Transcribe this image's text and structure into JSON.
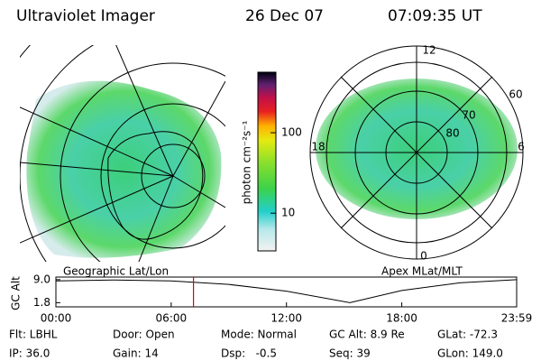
{
  "header": {
    "title": "Ultraviolet Imager",
    "date": "26 Dec 07",
    "time": "07:09:35 UT"
  },
  "left_map": {
    "label": "Geographic Lat/Lon"
  },
  "right_map": {
    "label": "Apex MLat/MLT",
    "labels": [
      "12",
      "60",
      "70",
      "80",
      "18",
      "6",
      "0"
    ]
  },
  "colorbar": {
    "label": "photon cm⁻²s⁻¹",
    "log": true,
    "lim": [
      3.4,
      565
    ],
    "ticks": [
      10,
      100
    ]
  },
  "altitude_plot": {
    "type": "line",
    "ylabel": "GC Alt",
    "yticks": [
      1.8,
      {
        "value": 9,
        "label": "9.0"
      }
    ],
    "ylim": [
      0.5,
      9.8
    ],
    "xlim": [
      0,
      23.98
    ],
    "xticks": [
      {
        "value": 0,
        "label": "00:00"
      },
      {
        "value": 6,
        "label": "06:00"
      },
      {
        "value": 12,
        "label": "12:00"
      },
      {
        "value": 18,
        "label": "18:00"
      },
      {
        "value": 23.98,
        "label": "23:59"
      }
    ],
    "x": [
      0,
      3,
      6,
      9,
      12,
      15.3,
      18,
      21,
      23.98
    ],
    "values": [
      8.6,
      8.9,
      8.6,
      7.5,
      5.4,
      1.8,
      5.6,
      8.0,
      9.0
    ],
    "marker": 7.16,
    "marker_color": "#e00000"
  },
  "footer": {
    "rows": [
      [
        "Flt: LBHL",
        "Door: Open",
        "Mode: Normal",
        "GC Alt: 8.9 Re",
        "GLat: -72.3"
      ],
      [
        "IP: 36.0",
        "Gain: 14",
        "Dsp:   -0.5",
        "Seq: 39",
        "GLon: 149.0"
      ]
    ]
  }
}
